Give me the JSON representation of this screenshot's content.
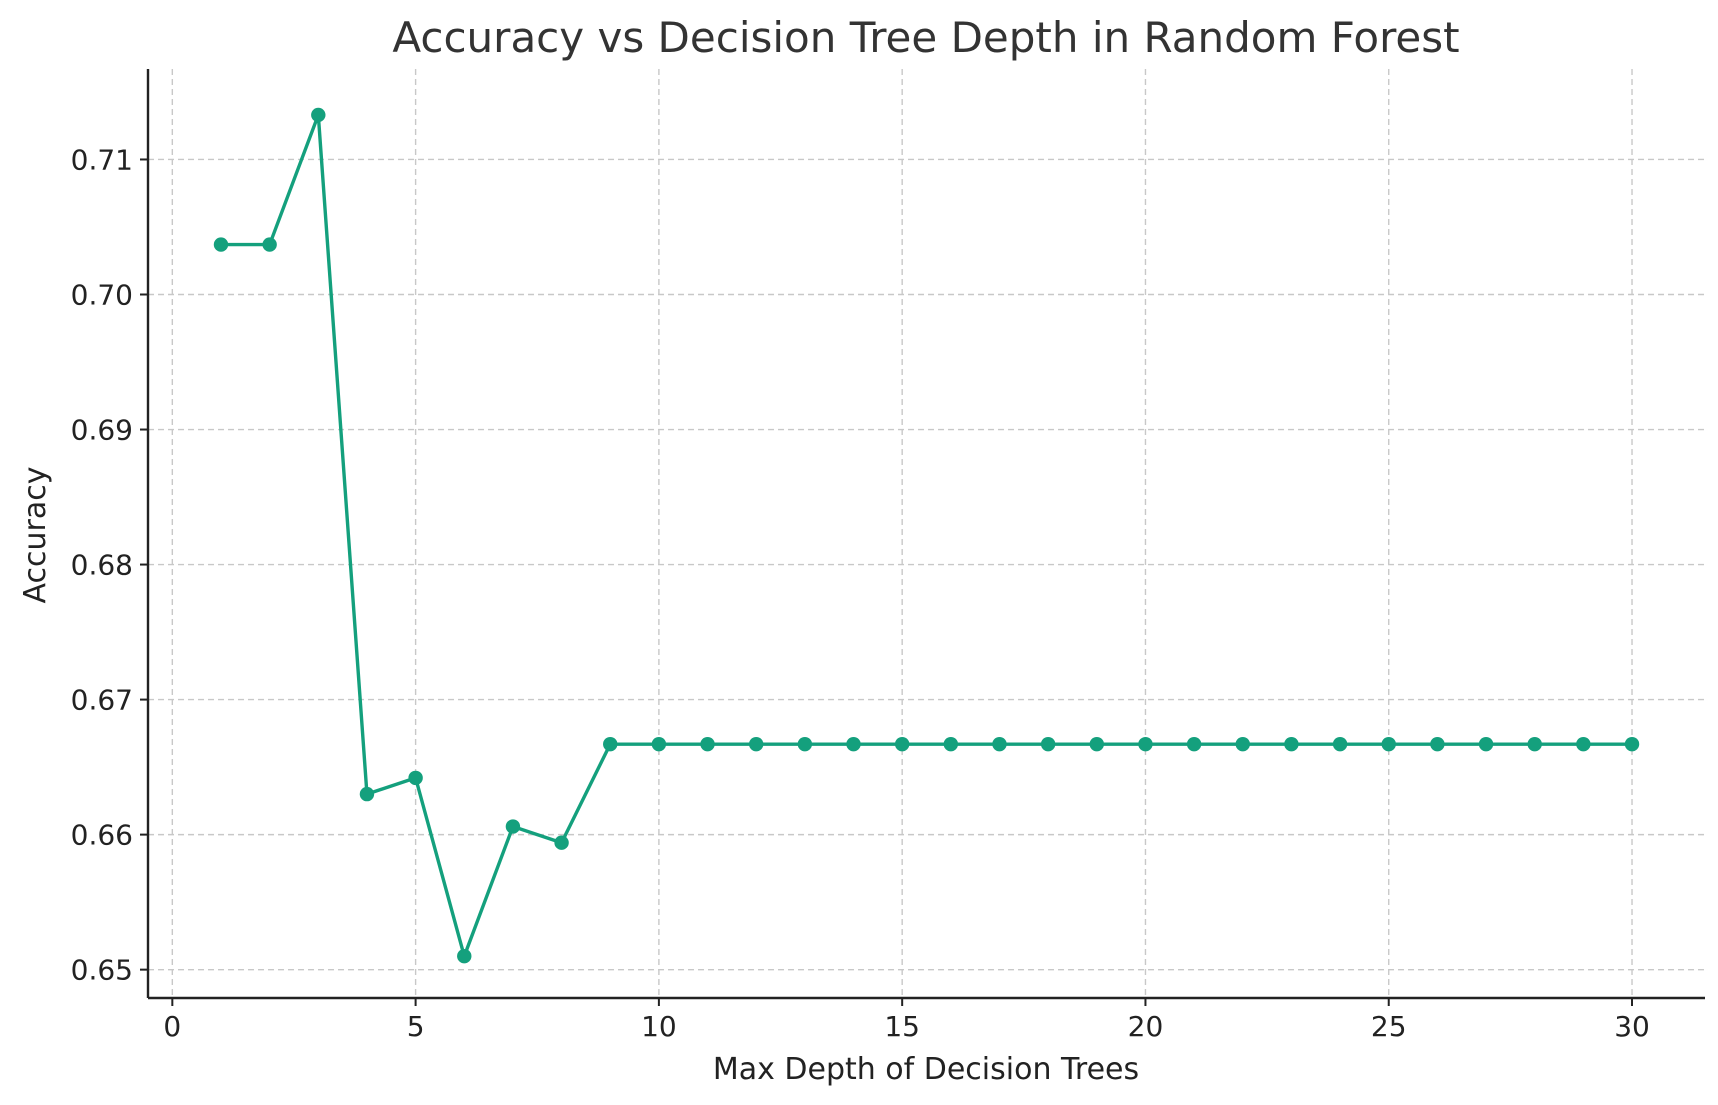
{
  "chart_data": {
    "type": "line",
    "title": "Accuracy vs Decision Tree Depth in Random Forest",
    "xlabel": "Max Depth of Decision Trees",
    "ylabel": "Accuracy",
    "xlim": [
      -0.5,
      31.5
    ],
    "ylim": [
      0.6479,
      0.7167
    ],
    "xticks": [
      0,
      5,
      10,
      15,
      20,
      25,
      30
    ],
    "xtick_labels": [
      "0",
      "5",
      "10",
      "15",
      "20",
      "25",
      "30"
    ],
    "yticks": [
      0.65,
      0.66,
      0.67,
      0.68,
      0.69,
      0.7,
      0.71
    ],
    "ytick_labels": [
      "0.65",
      "0.66",
      "0.67",
      "0.68",
      "0.69",
      "0.70",
      "0.71"
    ],
    "grid": true,
    "legend": false,
    "marker": "circle",
    "color": "#14a07d",
    "x": [
      1,
      2,
      3,
      4,
      5,
      6,
      7,
      8,
      9,
      10,
      11,
      12,
      13,
      14,
      15,
      16,
      17,
      18,
      19,
      20,
      21,
      22,
      23,
      24,
      25,
      26,
      27,
      28,
      29,
      30
    ],
    "series": [
      {
        "values": [
          0.7037,
          0.7037,
          0.7133,
          0.663,
          0.6642,
          0.651,
          0.6606,
          0.6594,
          0.6667,
          0.6667,
          0.6667,
          0.6667,
          0.6667,
          0.6667,
          0.6667,
          0.6667,
          0.6667,
          0.6667,
          0.6667,
          0.6667,
          0.6667,
          0.6667,
          0.6667,
          0.6667,
          0.6667,
          0.6667,
          0.6667,
          0.6667,
          0.6667,
          0.6667
        ]
      }
    ]
  }
}
